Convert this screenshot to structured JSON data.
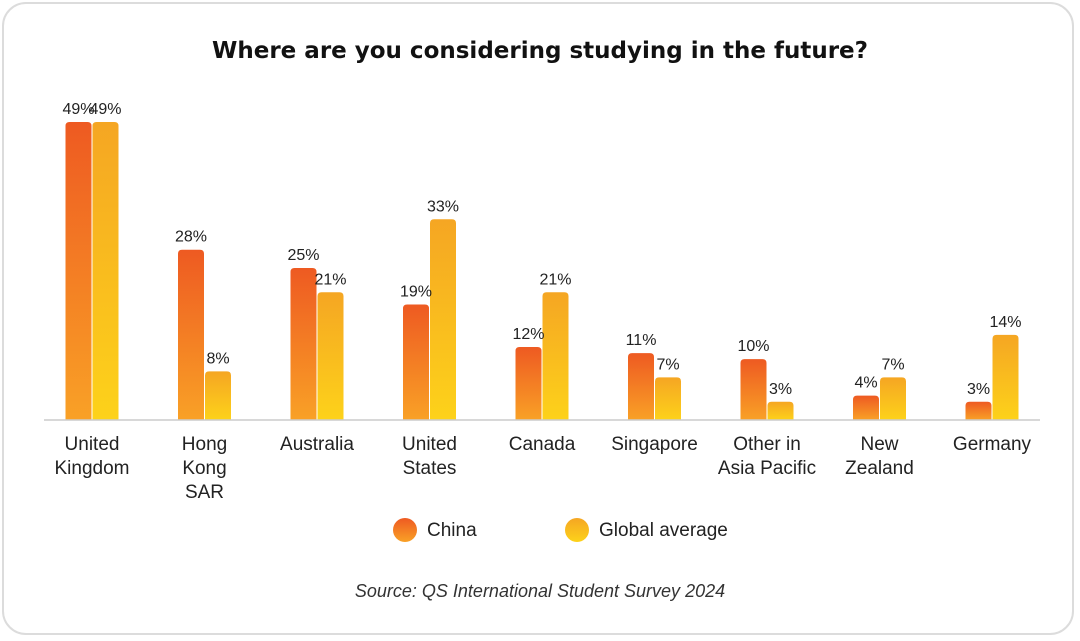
{
  "chart_data": {
    "type": "bar",
    "title": "Where are you considering studying in the future?",
    "categories": [
      [
        "United",
        "Kingdom"
      ],
      [
        "Hong",
        "Kong",
        "SAR"
      ],
      [
        "Australia"
      ],
      [
        "United",
        "States"
      ],
      [
        "Canada"
      ],
      [
        "Singapore"
      ],
      [
        "Other in",
        "Asia Pacific"
      ],
      [
        "New",
        "Zealand"
      ],
      [
        "Germany"
      ]
    ],
    "series": [
      {
        "name": "China",
        "values": [
          49,
          28,
          25,
          19,
          12,
          11,
          10,
          4,
          3
        ],
        "labels": [
          "49%",
          "28%",
          "25%",
          "19%",
          "12%",
          "11%",
          "10%",
          "4%",
          "3%"
        ],
        "color_top": "#ee5a22",
        "color_bottom": "#f9a126"
      },
      {
        "name": "Global average",
        "values": [
          49,
          8,
          21,
          33,
          21,
          7,
          3,
          7,
          14
        ],
        "labels": [
          "49%",
          "8%",
          "21%",
          "33%",
          "21%",
          "7%",
          "3%",
          "7%",
          "14%"
        ],
        "color_top": "#f5a623",
        "color_bottom": "#fdd21a"
      }
    ],
    "ylim": [
      0,
      50
    ],
    "grid": false,
    "legend_position": "bottom",
    "source": "Source: QS International Student Survey 2024"
  }
}
